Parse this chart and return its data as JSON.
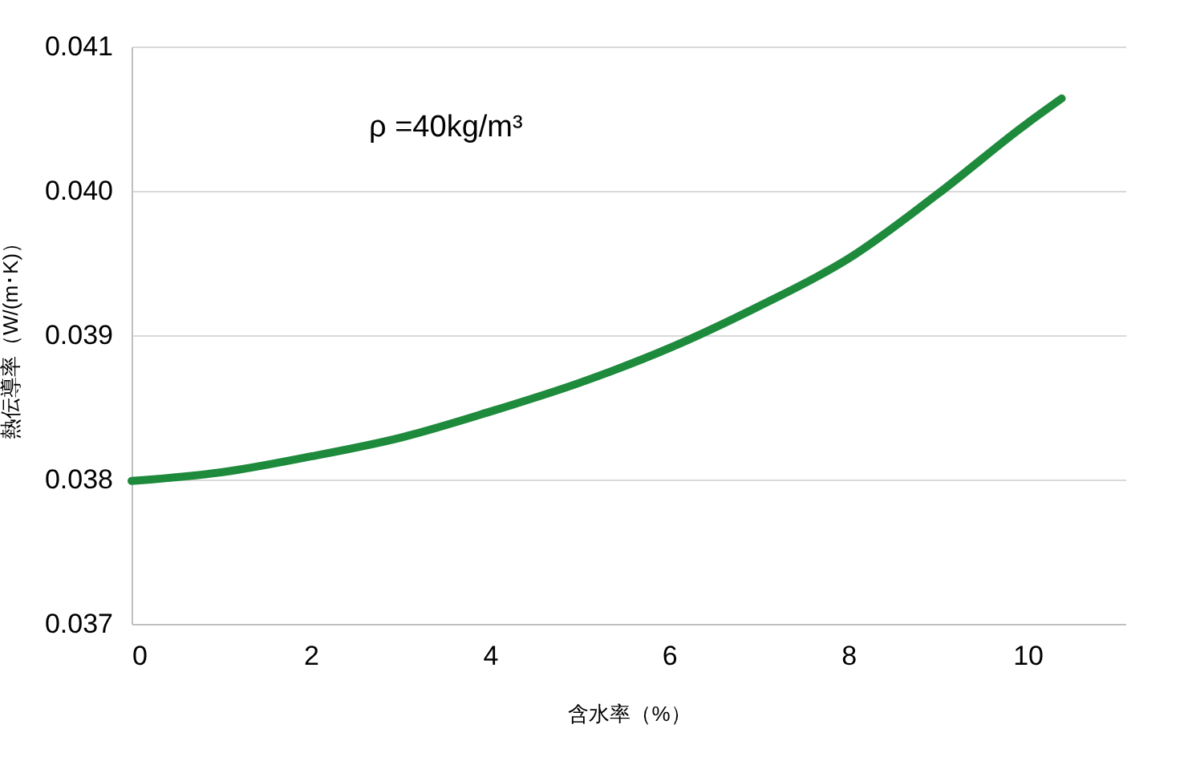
{
  "chart_data": {
    "type": "line",
    "xlabel": "含水率（%）",
    "ylabel": "熱伝導率（W/(m･K)）",
    "annotations": [
      "ρ =40kg/m³"
    ],
    "series": [
      {
        "color": "#1e8a3c",
        "x": [
          0,
          1,
          2,
          3,
          4,
          5,
          6,
          7,
          8,
          9,
          10,
          10.38
        ],
        "values": [
          0.03799,
          0.03805,
          0.03816,
          0.03829,
          0.03847,
          0.03867,
          0.03891,
          0.0392,
          0.03953,
          0.03998,
          0.04047,
          0.04064
        ]
      }
    ],
    "xlim": [
      0,
      11.1
    ],
    "xticks": [
      0,
      2,
      4,
      6,
      8,
      10
    ],
    "ylim": [
      0.037,
      0.041
    ],
    "yticks": [
      0.037,
      0.038,
      0.039,
      {
        "value": 0.04,
        "label": "0.040"
      },
      0.041
    ],
    "grid": "y",
    "marker": "none",
    "line_style": "solid"
  }
}
